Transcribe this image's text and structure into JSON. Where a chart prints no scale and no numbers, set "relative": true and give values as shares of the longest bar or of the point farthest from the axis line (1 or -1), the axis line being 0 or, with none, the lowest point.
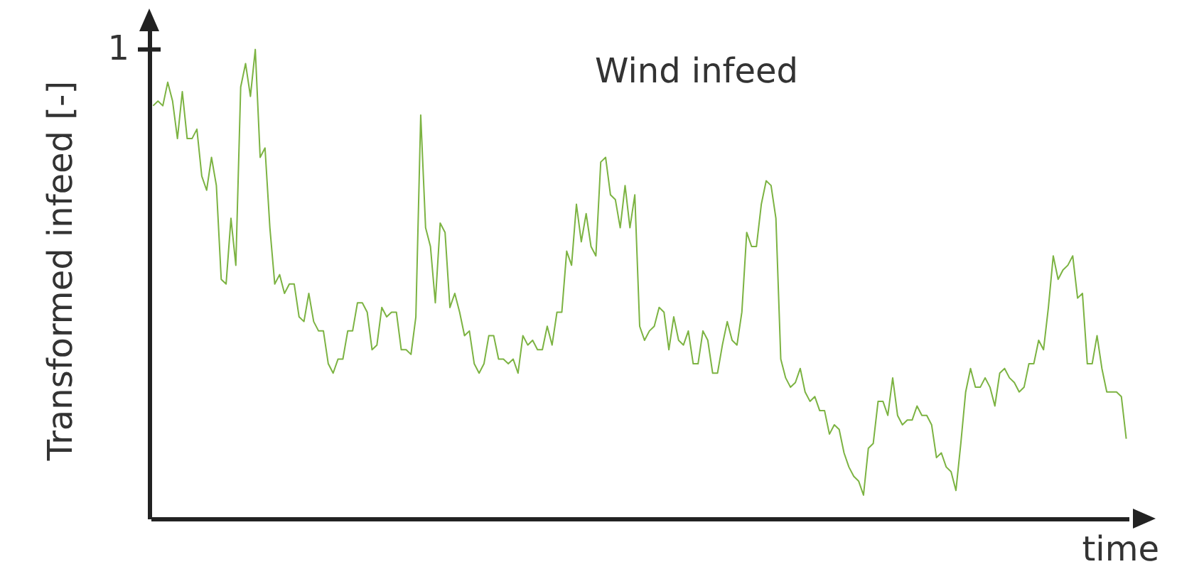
{
  "chart_data": {
    "type": "line",
    "title": "Wind infeed",
    "xlabel": "time",
    "ylabel": "Transformed infeed [-]",
    "relative": true,
    "grid": false,
    "legend": false,
    "marker": "none",
    "line_style": "solid",
    "annotations": [
      "1"
    ],
    "categories": [
      null,
      null,
      null,
      null,
      null,
      null,
      null,
      null,
      null,
      null,
      null,
      null,
      null,
      null,
      null,
      null,
      null,
      null,
      null,
      null,
      null,
      null,
      null,
      null,
      null,
      null,
      null,
      null,
      null,
      null,
      null,
      null,
      null,
      null,
      null,
      null,
      null,
      null,
      null,
      null,
      null,
      null,
      null,
      null,
      null,
      null,
      null,
      null,
      null,
      null,
      null,
      null,
      null,
      null,
      null,
      null,
      null,
      null,
      null,
      null,
      null,
      null,
      null,
      null,
      null,
      null,
      null,
      null,
      null,
      null,
      null,
      null,
      null,
      null,
      null,
      null,
      null,
      null,
      null,
      null,
      null,
      null,
      null,
      null,
      null,
      null,
      null,
      null,
      null,
      null,
      null,
      null,
      null,
      null,
      null,
      null,
      null,
      null,
      null,
      null,
      null,
      null,
      null,
      null,
      null,
      null,
      null,
      null,
      null,
      null,
      null,
      null,
      null,
      null,
      null,
      null,
      null,
      null,
      null,
      null,
      null,
      null,
      null,
      null,
      null,
      null,
      null,
      null,
      null,
      null,
      null,
      null,
      null,
      null,
      null,
      null,
      null,
      null,
      null,
      null,
      null,
      null,
      null,
      null,
      null,
      null,
      null,
      null,
      null,
      null,
      null,
      null,
      null,
      null,
      null,
      null,
      null,
      null,
      null,
      null,
      null,
      null,
      null,
      null,
      null,
      null,
      null,
      null,
      null,
      null,
      null,
      null,
      null,
      null,
      null,
      null,
      null,
      null,
      null,
      null,
      null,
      null,
      null,
      null,
      null,
      null,
      null,
      null,
      null,
      null,
      null,
      null,
      null,
      null,
      null,
      null,
      null,
      null,
      null,
      null,
      null
    ],
    "series": [
      {
        "color": "#7cb342",
        "values": [
          0.88,
          0.89,
          0.88,
          0.93,
          0.89,
          0.81,
          0.91,
          0.81,
          0.81,
          0.83,
          0.73,
          0.7,
          0.77,
          0.71,
          0.51,
          0.5,
          0.64,
          0.54,
          0.92,
          0.97,
          0.9,
          1,
          0.77,
          0.79,
          0.62,
          0.5,
          0.52,
          0.48,
          0.5,
          0.5,
          0.43,
          0.42,
          0.48,
          0.42,
          0.4,
          0.4,
          0.33,
          0.31,
          0.34,
          0.34,
          0.4,
          0.4,
          0.46,
          0.46,
          0.44,
          0.36,
          0.37,
          0.45,
          0.43,
          0.44,
          0.44,
          0.36,
          0.36,
          0.35,
          0.43,
          0.86,
          0.62,
          0.58,
          0.46,
          0.63,
          0.61,
          0.45,
          0.48,
          0.44,
          0.39,
          0.4,
          0.33,
          0.31,
          0.33,
          0.39,
          0.39,
          0.34,
          0.34,
          0.33,
          0.34,
          0.31,
          0.39,
          0.37,
          0.38,
          0.36,
          0.36,
          0.41,
          0.37,
          0.44,
          0.44,
          0.57,
          0.54,
          0.67,
          0.59,
          0.65,
          0.58,
          0.56,
          0.76,
          0.77,
          0.69,
          0.68,
          0.62,
          0.71,
          0.62,
          0.69,
          0.41,
          0.38,
          0.4,
          0.41,
          0.45,
          0.44,
          0.36,
          0.43,
          0.38,
          0.37,
          0.4,
          0.33,
          0.33,
          0.4,
          0.38,
          0.31,
          0.31,
          0.37,
          0.42,
          0.38,
          0.37,
          0.44,
          0.61,
          0.58,
          0.58,
          0.67,
          0.72,
          0.71,
          0.64,
          0.34,
          0.3,
          0.28,
          0.29,
          0.32,
          0.27,
          0.25,
          0.26,
          0.23,
          0.23,
          0.18,
          0.2,
          0.19,
          0.14,
          0.11,
          0.09,
          0.08,
          0.05,
          0.15,
          0.16,
          0.25,
          0.25,
          0.22,
          0.3,
          0.22,
          0.2,
          0.21,
          0.21,
          0.24,
          0.22,
          0.22,
          0.2,
          0.13,
          0.14,
          0.11,
          0.1,
          0.06,
          0.16,
          0.27,
          0.32,
          0.28,
          0.28,
          0.3,
          0.28,
          0.24,
          0.31,
          0.32,
          0.3,
          0.29,
          0.27,
          0.28,
          0.33,
          0.33,
          0.38,
          0.36,
          0.45,
          0.56,
          0.51,
          0.53,
          0.54,
          0.56,
          0.47,
          0.48,
          0.33,
          0.33,
          0.39,
          0.32,
          0.27,
          0.27,
          0.27,
          0.26,
          0.17
        ]
      }
    ]
  }
}
